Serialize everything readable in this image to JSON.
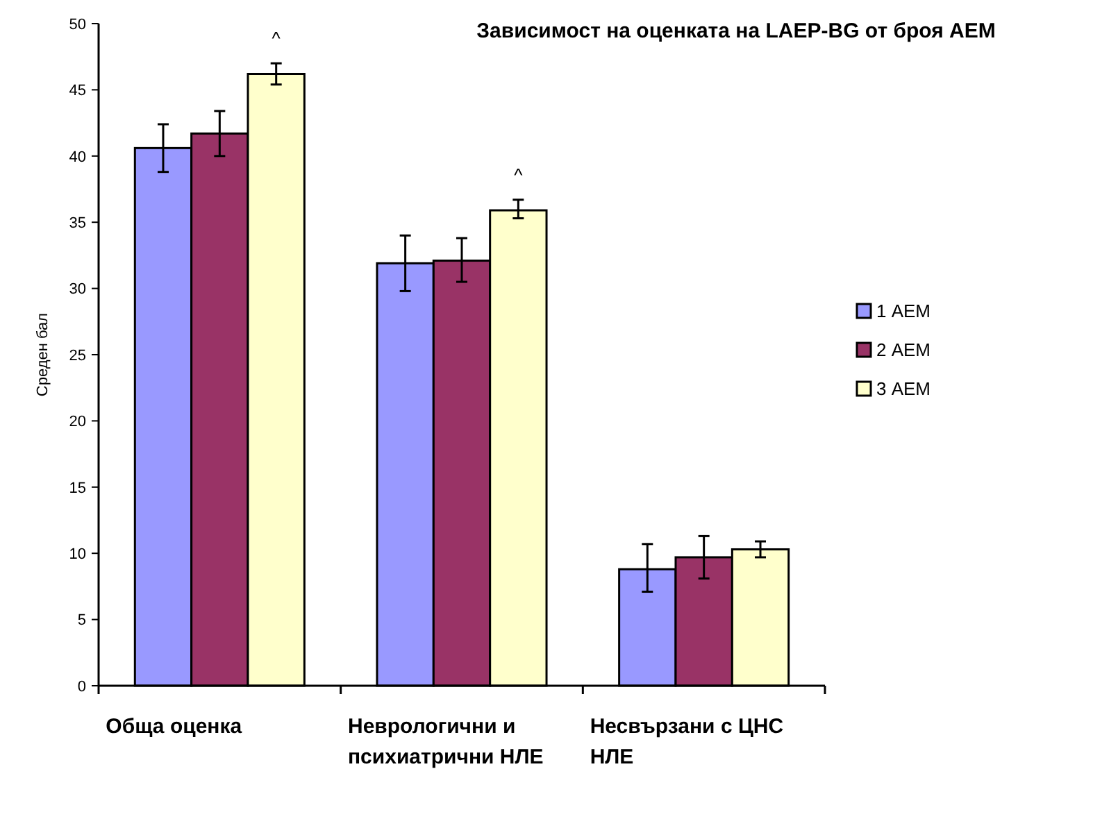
{
  "chart_data": {
    "type": "bar",
    "title": "Зависимост на оценката на LAEP-BG от броя АЕМ",
    "ylabel": "Среден бал",
    "categories": [
      "Обща оценка",
      "Неврологични и психиатрични НЛЕ",
      "Несвързани с ЦНС НЛЕ"
    ],
    "series": [
      {
        "name": "1 АЕМ",
        "color": "#9999ff",
        "values": [
          40.6,
          31.9,
          8.8
        ],
        "errors": [
          [
            38.8,
            42.4
          ],
          [
            29.8,
            34.0
          ],
          [
            7.1,
            10.7
          ]
        ]
      },
      {
        "name": "2 АЕМ",
        "color": "#993366",
        "values": [
          41.7,
          32.1,
          9.7
        ],
        "errors": [
          [
            40.0,
            43.4
          ],
          [
            30.5,
            33.8
          ],
          [
            8.1,
            11.3
          ]
        ]
      },
      {
        "name": "3 АЕМ",
        "color": "#ffffcc",
        "values": [
          46.2,
          35.9,
          10.3
        ],
        "errors": [
          [
            45.4,
            47.0
          ],
          [
            35.3,
            36.7
          ],
          [
            9.7,
            10.9
          ]
        ]
      }
    ],
    "annotations": [
      "^",
      "^"
    ],
    "ylim": [
      0,
      50
    ],
    "yticks": [
      0,
      5,
      10,
      15,
      20,
      25,
      30,
      35,
      40,
      45,
      50
    ],
    "grid": false,
    "legend": "right"
  }
}
